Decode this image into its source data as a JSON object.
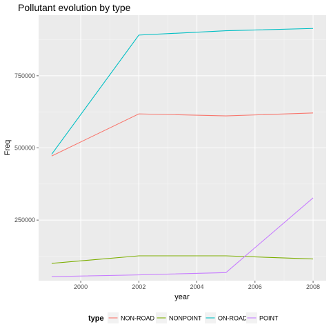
{
  "chart_data": {
    "type": "line",
    "title": "Pollutant evolution by type",
    "xlabel": "year",
    "ylabel": "Freq",
    "xlim": [
      1999,
      2008
    ],
    "ylim": [
      40000,
      960000
    ],
    "x_ticks": [
      2000,
      2002,
      2004,
      2006,
      2008
    ],
    "y_ticks": [
      250000,
      500000,
      750000
    ],
    "y_tick_labels": [
      "250000",
      "500000",
      "750000"
    ],
    "x": [
      1999,
      2002,
      2005,
      2008
    ],
    "legend_title": "type",
    "legend_position": "bottom",
    "grid": true,
    "series": [
      {
        "name": "NON-ROAD",
        "color": "#F8766D",
        "values": [
          472000,
          618000,
          611000,
          621000
        ]
      },
      {
        "name": "NONPOINT",
        "color": "#7CAE00",
        "values": [
          100000,
          126000,
          126000,
          115000
        ]
      },
      {
        "name": "ON-ROAD",
        "color": "#00BFC4",
        "values": [
          478000,
          891000,
          906000,
          914000
        ]
      },
      {
        "name": "POINT",
        "color": "#C77CFF",
        "values": [
          54000,
          60000,
          68000,
          327000
        ]
      }
    ]
  }
}
